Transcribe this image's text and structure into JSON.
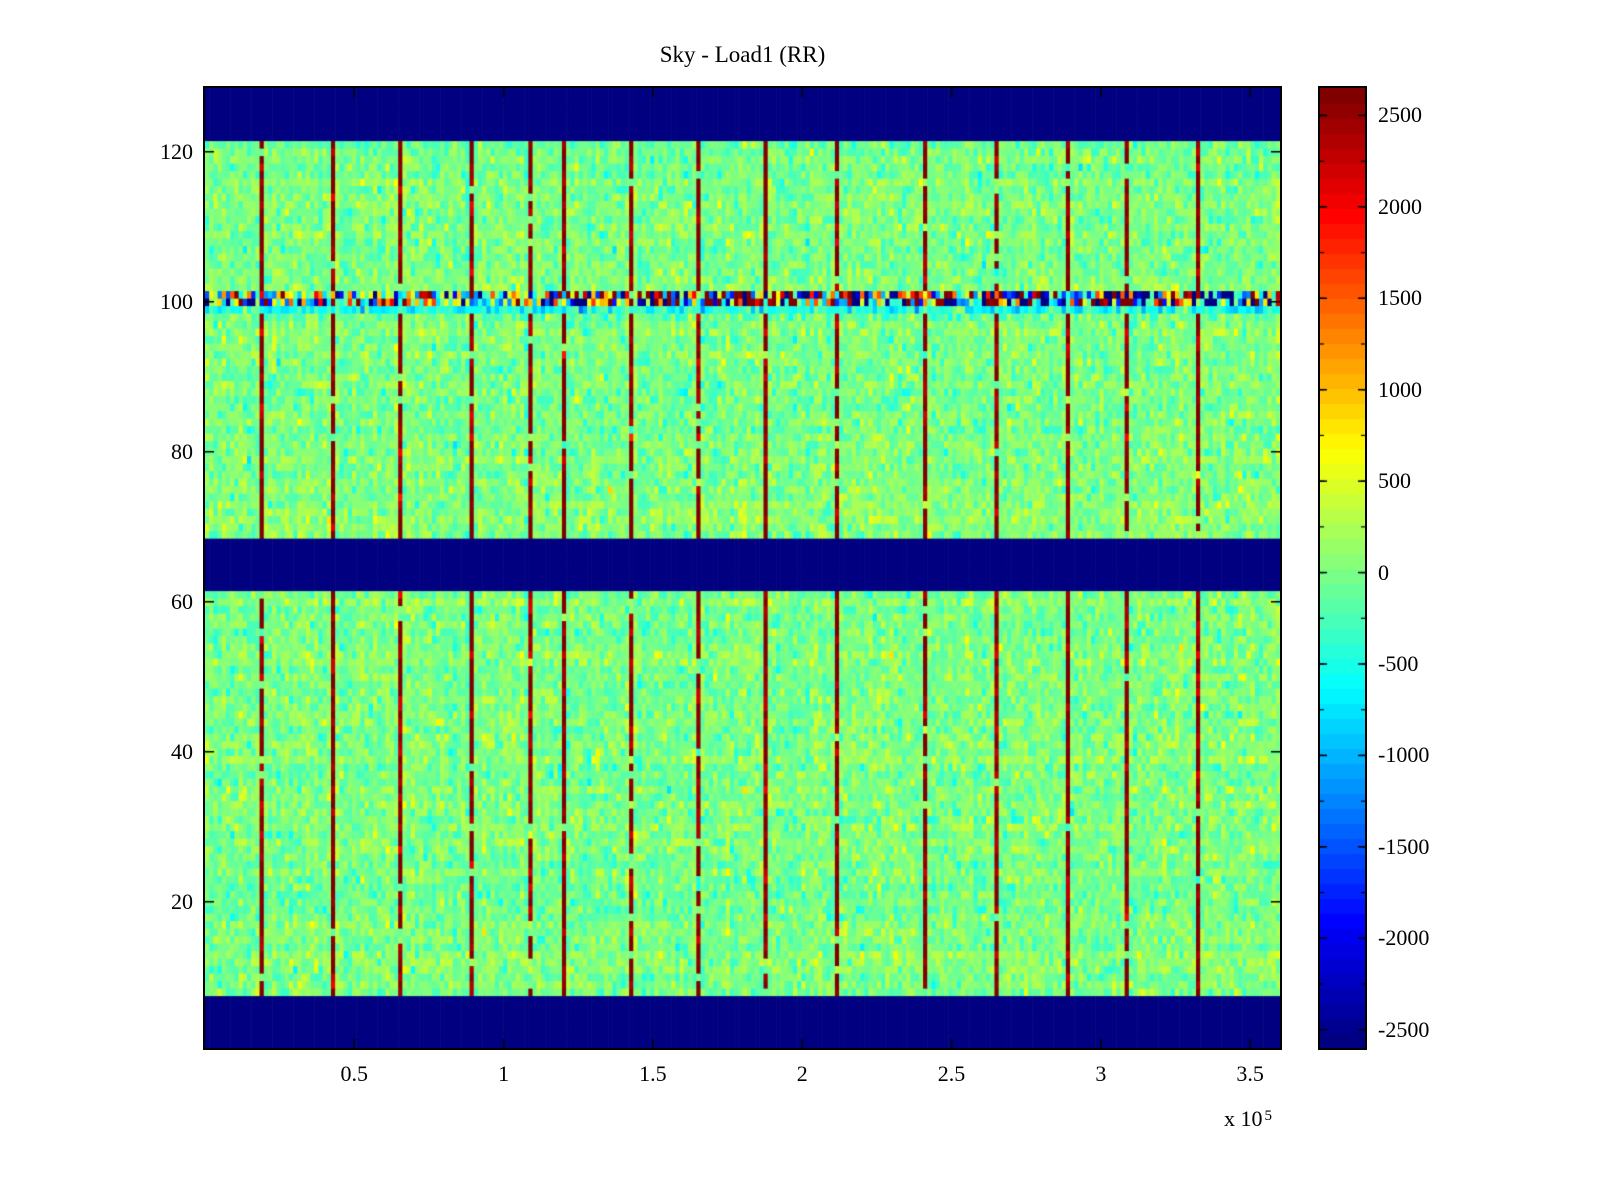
{
  "chart_data": {
    "type": "heatmap",
    "title": "Sky - Load1 (RR)",
    "x_multiplier_base": "x 10",
    "x_multiplier_exp": "5",
    "x_range": [
      0,
      360000
    ],
    "x_ticks": [
      {
        "value": 50000,
        "label": "0.5"
      },
      {
        "value": 100000,
        "label": "1"
      },
      {
        "value": 150000,
        "label": "1.5"
      },
      {
        "value": 200000,
        "label": "2"
      },
      {
        "value": 250000,
        "label": "2.5"
      },
      {
        "value": 300000,
        "label": "3"
      },
      {
        "value": 350000,
        "label": "3.5"
      }
    ],
    "y_range": [
      0.5,
      128.5
    ],
    "y_ticks": [
      {
        "value": 20,
        "label": "20"
      },
      {
        "value": 40,
        "label": "40"
      },
      {
        "value": 60,
        "label": "60"
      },
      {
        "value": 80,
        "label": "80"
      },
      {
        "value": 100,
        "label": "100"
      },
      {
        "value": 120,
        "label": "120"
      }
    ],
    "colormap": "jet",
    "color_range": [
      -2600,
      2650
    ],
    "colorbar_ticks": [
      {
        "value": 2500,
        "label": "2500"
      },
      {
        "value": 2000,
        "label": "2000"
      },
      {
        "value": 1500,
        "label": "1500"
      },
      {
        "value": 1000,
        "label": "1000"
      },
      {
        "value": 500,
        "label": "500"
      },
      {
        "value": 0,
        "label": "0"
      },
      {
        "value": -500,
        "label": "-500"
      },
      {
        "value": -1000,
        "label": "-1000"
      },
      {
        "value": -1500,
        "label": "-1500"
      },
      {
        "value": -2000,
        "label": "-2000"
      },
      {
        "value": -2500,
        "label": "-2500"
      }
    ],
    "colorbar_minor_tick_step": 250,
    "grid": {
      "rows": 128,
      "cols": 256
    },
    "noise": {
      "seed": 20240607,
      "std": 200,
      "row_offset_std": 55,
      "col_offset_std": 45
    },
    "masked_row_bands": [
      [
        1,
        7
      ],
      [
        62,
        68
      ],
      [
        122,
        128
      ]
    ],
    "masked_value": -2600,
    "hot_rows": {
      "rows": [
        100,
        101
      ],
      "std": 1500,
      "boost_x_from": 115000,
      "boost_std": 2700
    },
    "cool_rows": {
      "rows": [
        99
      ],
      "offset": -500,
      "std": 300
    },
    "vertical_stripes": {
      "x_positions": [
        19000,
        42500,
        65500,
        88700,
        109500,
        120000,
        142500,
        165800,
        188000,
        211300,
        241000,
        265000,
        288300,
        308500,
        332000
      ],
      "value": 2600,
      "jitter_std": 250,
      "gap_probability": 0.08
    }
  }
}
